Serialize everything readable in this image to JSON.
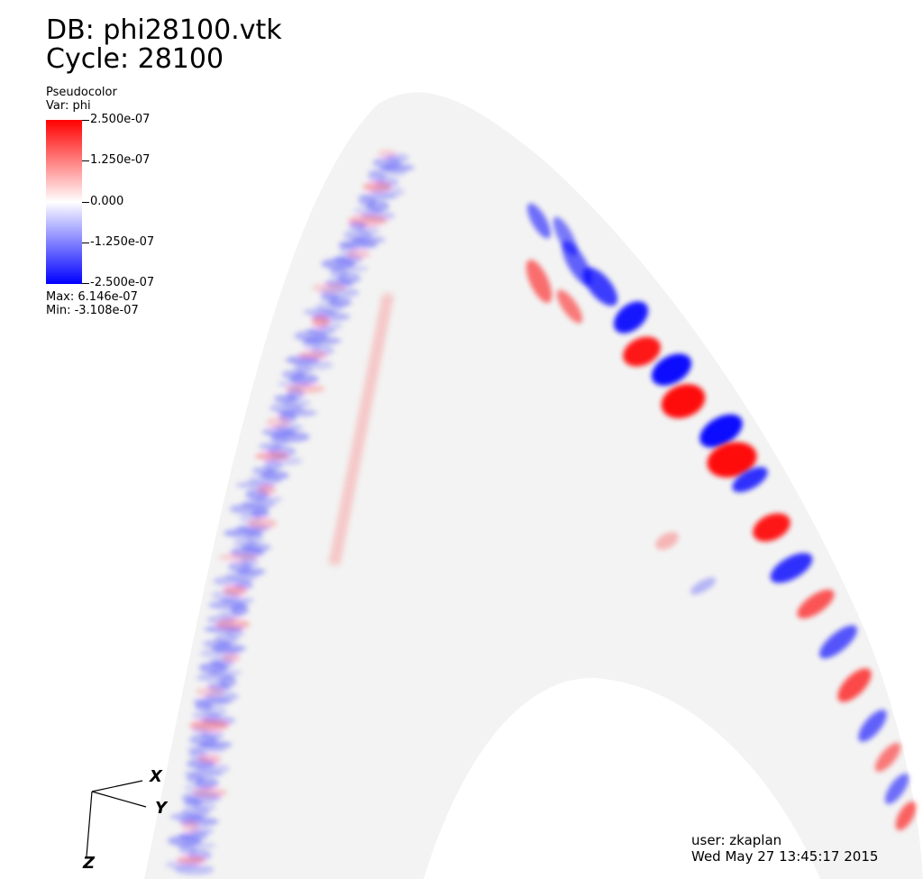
{
  "header": {
    "db_label": "DB: phi28100.vtk",
    "cycle_label": "Cycle: 28100"
  },
  "legend": {
    "plot_type": "Pseudocolor",
    "variable": "Var: phi",
    "ticks": [
      "2.500e-07",
      "1.250e-07",
      "0.000",
      "-1.250e-07",
      "-2.500e-07"
    ],
    "max": "Max:  6.146e-07",
    "min": "Min: -3.108e-07",
    "colors": {
      "high": "#ff0000",
      "mid": "#ffffff",
      "low": "#0000ff"
    }
  },
  "axes": {
    "x": "X",
    "y": "Y",
    "z": "Z"
  },
  "footer": {
    "user": "user: zkaplan",
    "timestamp": "Wed May 27 13:45:17 2015"
  },
  "scene": {
    "background_color": "#f3f3f3",
    "positive_color": "#ff0000",
    "negative_color": "#0000ff"
  }
}
